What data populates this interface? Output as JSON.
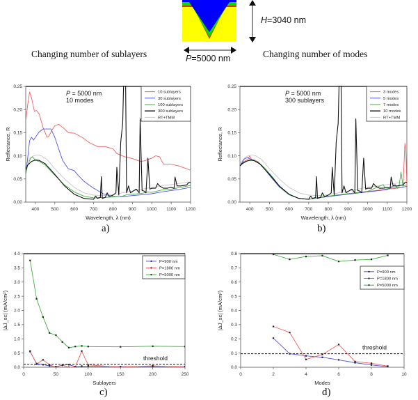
{
  "figure": {
    "left_column_title": "Changing number of sublayers",
    "right_column_title": "Changing number of modes",
    "diagram": {
      "height_label_var": "H",
      "height_label_value": "=3040 nm",
      "period_label_var": "P",
      "period_label_value": "=5000 nm",
      "colors": {
        "top_layer": "#0000ff",
        "middle_layer": "#00e000",
        "interface": "#d04000",
        "substrate": "#ffff00"
      }
    },
    "panel_labels": [
      "a)",
      "b)",
      "c)",
      "d)"
    ]
  },
  "chart_data": [
    {
      "id": "a",
      "type": "line",
      "xlabel": "Wavelength, λ (nm)",
      "ylabel": "Reflectance, R",
      "xlim": [
        350,
        1200
      ],
      "ylim": [
        0,
        0.25
      ],
      "xticks": [
        400,
        500,
        600,
        700,
        800,
        900,
        1000,
        1100,
        1200
      ],
      "xtick_labels": [
        "400",
        "500",
        "600",
        "700",
        "800",
        "900",
        "1000",
        "1100",
        "1200"
      ],
      "yticks": [
        0,
        0.05,
        0.1,
        0.15,
        0.2,
        0.25
      ],
      "ytick_labels": [
        "0.00",
        "0.05",
        "0.10",
        "0.15",
        "0.20",
        "0.25"
      ],
      "annotation": [
        "P = 5000 nm",
        "10 modes"
      ],
      "legend_position": "top-right",
      "series": [
        {
          "name": "10 sublayers",
          "color": "#f06060",
          "x": [
            350,
            360,
            370,
            380,
            395,
            405,
            420,
            440,
            460,
            470,
            485,
            500,
            520,
            545,
            570,
            600,
            640,
            680,
            720,
            760,
            800,
            820,
            860,
            900,
            940,
            960,
            980,
            1000,
            1020,
            1040,
            1060,
            1100,
            1140,
            1200
          ],
          "y": [
            0.175,
            0.21,
            0.238,
            0.225,
            0.196,
            0.198,
            0.19,
            0.16,
            0.14,
            0.143,
            0.155,
            0.165,
            0.168,
            0.16,
            0.15,
            0.149,
            0.14,
            0.128,
            0.12,
            0.12,
            0.115,
            0.105,
            0.098,
            0.094,
            0.088,
            0.089,
            0.092,
            0.095,
            0.1,
            0.098,
            0.082,
            0.082,
            0.078,
            0.069
          ]
        },
        {
          "name": "30 sublayers",
          "color": "#5050ee",
          "x": [
            350,
            360,
            370,
            380,
            390,
            400,
            420,
            440,
            460,
            480,
            500,
            520,
            540,
            570,
            600,
            620,
            650,
            700,
            750,
            800,
            850,
            900,
            950,
            1000,
            1050,
            1100,
            1150,
            1200
          ],
          "y": [
            0.06,
            0.095,
            0.133,
            0.14,
            0.134,
            0.14,
            0.152,
            0.158,
            0.158,
            0.158,
            0.14,
            0.115,
            0.09,
            0.072,
            0.068,
            0.058,
            0.045,
            0.03,
            0.018,
            0.012,
            0.012,
            0.014,
            0.016,
            0.018,
            0.022,
            0.025,
            0.028,
            0.032
          ]
        },
        {
          "name": "100 sublayers",
          "color": "#40b040",
          "x": [
            350,
            360,
            375,
            385,
            400,
            420,
            450,
            500,
            550,
            600,
            650,
            700,
            750,
            800,
            850,
            870,
            900,
            950,
            980,
            1000,
            1050,
            1100,
            1150,
            1200
          ],
          "y": [
            0.06,
            0.08,
            0.095,
            0.098,
            0.09,
            0.088,
            0.08,
            0.058,
            0.037,
            0.022,
            0.013,
            0.009,
            0.01,
            0.011,
            0.013,
            0.016,
            0.017,
            0.019,
            0.022,
            0.021,
            0.026,
            0.028,
            0.032,
            0.036
          ]
        },
        {
          "name": "300 sublayers",
          "color": "#111111",
          "x": [
            350,
            360,
            380,
            400,
            420,
            450,
            500,
            550,
            600,
            650,
            700,
            710,
            720,
            735,
            740,
            745,
            760,
            770,
            780,
            800,
            815,
            820,
            830,
            840,
            850,
            855,
            860,
            865,
            870,
            880,
            890,
            920,
            935,
            940,
            950,
            960,
            970,
            980,
            990,
            1000,
            1020,
            1030,
            1040,
            1060,
            1080,
            1100,
            1115,
            1120,
            1130,
            1150,
            1180,
            1190,
            1200
          ],
          "y": [
            0.07,
            0.08,
            0.088,
            0.091,
            0.09,
            0.083,
            0.06,
            0.035,
            0.017,
            0.008,
            0.006,
            0.013,
            0.008,
            0.01,
            0.055,
            0.008,
            0.01,
            0.02,
            0.012,
            0.015,
            0.02,
            0.075,
            0.015,
            0.13,
            0.17,
            0.26,
            0.26,
            0.26,
            0.02,
            0.035,
            0.02,
            0.028,
            0.02,
            0.18,
            0.025,
            0.024,
            0.02,
            0.095,
            0.028,
            0.03,
            0.03,
            0.04,
            0.035,
            0.03,
            0.03,
            0.032,
            0.03,
            0.054,
            0.035,
            0.035,
            0.037,
            0.042,
            0.043
          ]
        },
        {
          "name": "RT+TMM",
          "color": "#c8c8c8",
          "x": [
            350,
            370,
            390,
            410,
            430,
            460,
            500,
            550,
            600,
            650,
            700,
            750,
            800,
            900,
            1000,
            1100,
            1200
          ],
          "y": [
            0.082,
            0.094,
            0.1,
            0.102,
            0.1,
            0.092,
            0.072,
            0.05,
            0.032,
            0.02,
            0.015,
            0.014,
            0.016,
            0.024,
            0.032,
            0.038,
            0.044
          ]
        }
      ]
    },
    {
      "id": "b",
      "type": "line",
      "xlabel": "Wavelength, λ (nm)",
      "ylabel": "Reflectance, R",
      "xlim": [
        350,
        1200
      ],
      "ylim": [
        0,
        0.25
      ],
      "xticks": [
        400,
        500,
        600,
        700,
        800,
        900,
        1000,
        1100,
        1200
      ],
      "xtick_labels": [
        "400",
        "500",
        "600",
        "700",
        "800",
        "900",
        "1000",
        "1100",
        "1200"
      ],
      "yticks": [
        0,
        0.05,
        0.1,
        0.15,
        0.2,
        0.25
      ],
      "ytick_labels": [
        "0.00",
        "0.05",
        "0.10",
        "0.15",
        "0.20",
        "0.25"
      ],
      "annotation": [
        "P = 5000 nm",
        "300 sublayers"
      ],
      "legend_position": "top-right",
      "series": [
        {
          "name": "3 modes",
          "color": "#f06060",
          "x": [
            350,
            370,
            390,
            400,
            410,
            430,
            460,
            500,
            550,
            600,
            650,
            700,
            750,
            800,
            900,
            1000,
            1100,
            1150,
            1180,
            1190,
            1195,
            1200
          ],
          "y": [
            0.078,
            0.088,
            0.092,
            0.1,
            0.092,
            0.09,
            0.08,
            0.058,
            0.033,
            0.016,
            0.008,
            0.006,
            0.01,
            0.013,
            0.018,
            0.023,
            0.028,
            0.03,
            0.032,
            0.127,
            0.11,
            0.035
          ]
        },
        {
          "name": "5 modes",
          "color": "#5050ee",
          "x": [
            350,
            370,
            380,
            390,
            400,
            420,
            460,
            500,
            550,
            600,
            650,
            700,
            750,
            800,
            900,
            1000,
            1100,
            1140,
            1150,
            1200
          ],
          "y": [
            0.078,
            0.092,
            0.095,
            0.096,
            0.094,
            0.09,
            0.08,
            0.058,
            0.033,
            0.016,
            0.008,
            0.006,
            0.009,
            0.012,
            0.017,
            0.022,
            0.027,
            0.038,
            0.03,
            0.034
          ]
        },
        {
          "name": "7 modes",
          "color": "#40b040",
          "x": [
            350,
            370,
            390,
            410,
            440,
            480,
            520,
            560,
            600,
            650,
            700,
            750,
            800,
            900,
            1000,
            1080,
            1090,
            1100,
            1160,
            1170,
            1180,
            1200
          ],
          "y": [
            0.078,
            0.085,
            0.089,
            0.09,
            0.088,
            0.072,
            0.052,
            0.03,
            0.016,
            0.008,
            0.006,
            0.01,
            0.013,
            0.018,
            0.023,
            0.038,
            0.028,
            0.029,
            0.033,
            0.065,
            0.035,
            0.037
          ]
        },
        {
          "name": "10 modes",
          "color": "#111111",
          "x": [
            350,
            360,
            380,
            400,
            420,
            450,
            500,
            550,
            600,
            650,
            700,
            710,
            720,
            735,
            740,
            745,
            760,
            770,
            780,
            800,
            815,
            820,
            830,
            840,
            850,
            855,
            860,
            865,
            870,
            880,
            890,
            920,
            935,
            940,
            950,
            960,
            970,
            980,
            990,
            1000,
            1020,
            1030,
            1040,
            1060,
            1080,
            1100,
            1115,
            1120,
            1130,
            1150,
            1180,
            1190,
            1200
          ],
          "y": [
            0.078,
            0.083,
            0.088,
            0.091,
            0.09,
            0.083,
            0.06,
            0.035,
            0.017,
            0.008,
            0.006,
            0.013,
            0.008,
            0.01,
            0.055,
            0.008,
            0.01,
            0.02,
            0.012,
            0.015,
            0.02,
            0.075,
            0.015,
            0.13,
            0.17,
            0.26,
            0.26,
            0.26,
            0.02,
            0.035,
            0.02,
            0.028,
            0.02,
            0.18,
            0.025,
            0.024,
            0.02,
            0.095,
            0.028,
            0.03,
            0.03,
            0.04,
            0.035,
            0.03,
            0.03,
            0.032,
            0.03,
            0.054,
            0.035,
            0.035,
            0.037,
            0.042,
            0.043
          ]
        },
        {
          "name": "RT+TMM",
          "color": "#c8c8c8",
          "x": [
            350,
            370,
            390,
            410,
            430,
            460,
            500,
            550,
            600,
            650,
            700,
            750,
            800,
            900,
            1000,
            1100,
            1200
          ],
          "y": [
            0.082,
            0.094,
            0.1,
            0.102,
            0.1,
            0.092,
            0.072,
            0.05,
            0.032,
            0.02,
            0.015,
            0.014,
            0.016,
            0.024,
            0.032,
            0.038,
            0.044
          ]
        }
      ]
    },
    {
      "id": "c",
      "type": "line",
      "xlabel": "Sublayers",
      "ylabel": "|ΔJ_sc| (mA/cm²)",
      "xlim": [
        0,
        250
      ],
      "ylim": [
        0,
        4.0
      ],
      "xticks": [
        0,
        50,
        100,
        150,
        200,
        250
      ],
      "xtick_labels": [
        "0",
        "50",
        "100",
        "150",
        "200",
        "250"
      ],
      "yticks": [
        0,
        0.5,
        1.0,
        1.5,
        2.0,
        2.5,
        3.0,
        3.5,
        4.0
      ],
      "ytick_labels": [
        "0.0",
        "0.5",
        "1.0",
        "1.5",
        "2.0",
        "2.5",
        "3.0",
        "3.5",
        "4.0"
      ],
      "threshold": {
        "value": 0.1,
        "label": "threshold"
      },
      "legend_position": "top-right",
      "series": [
        {
          "name": "P=900 nm",
          "color": "#5050ee",
          "x": [
            10,
            20,
            30,
            40,
            50,
            60,
            70,
            80,
            90,
            100,
            150,
            200,
            250
          ],
          "y": [
            0.55,
            0.13,
            0.09,
            0.05,
            0.02,
            0.07,
            0.09,
            0.02,
            0.04,
            0.04,
            0.02,
            0.03,
            0.02
          ]
        },
        {
          "name": "P=1800 nm",
          "color": "#f06060",
          "x": [
            10,
            20,
            30,
            40,
            50,
            60,
            70,
            80,
            90,
            100,
            150,
            200,
            250
          ],
          "y": [
            0.57,
            0.11,
            0.26,
            0.09,
            0.0,
            0.07,
            0.0,
            0.01,
            0.57,
            0.08,
            0.0,
            0.05,
            0.0
          ]
        },
        {
          "name": "P=5000 nm",
          "color": "#40b040",
          "x": [
            10,
            20,
            30,
            40,
            50,
            60,
            70,
            80,
            90,
            100,
            150,
            200,
            250
          ],
          "y": [
            3.76,
            2.41,
            1.77,
            1.21,
            1.13,
            0.89,
            0.69,
            0.73,
            0.75,
            0.73,
            0.72,
            0.74,
            0.73
          ]
        }
      ]
    },
    {
      "id": "d",
      "type": "line",
      "xlabel": "Modes",
      "ylabel": "|ΔJ_sc| (mA/cm²)",
      "xlim": [
        0,
        10
      ],
      "ylim": [
        0,
        0.8
      ],
      "xticks": [
        0,
        2,
        4,
        6,
        8,
        10
      ],
      "xtick_labels": [
        "0",
        "2",
        "4",
        "6",
        "8",
        "10"
      ],
      "yticks": [
        0,
        0.1,
        0.2,
        0.3,
        0.4,
        0.5,
        0.6,
        0.7,
        0.8
      ],
      "ytick_labels": [
        "0.0",
        "0.1",
        "0.2",
        "0.3",
        "0.4",
        "0.5",
        "0.6",
        "0.7",
        "0.8"
      ],
      "threshold": {
        "value": 0.095,
        "label": "threshold"
      },
      "legend_position": "top-right",
      "series": [
        {
          "name": "P=900 nm",
          "color": "#5050ee",
          "x": [
            2,
            3,
            4,
            5,
            6,
            7,
            8,
            9
          ],
          "y": [
            0.205,
            0.095,
            0.08,
            0.07,
            0.052,
            0.032,
            0.016,
            0.004
          ]
        },
        {
          "name": "P=1800 nm",
          "color": "#f06060",
          "x": [
            2,
            3,
            4,
            5,
            6,
            7,
            8,
            9
          ],
          "y": [
            0.287,
            0.245,
            0.055,
            0.09,
            0.16,
            0.04,
            0.028,
            0.008
          ]
        },
        {
          "name": "P=5000 nm",
          "color": "#40b040",
          "x": [
            2,
            3,
            4,
            5,
            6,
            7,
            8,
            9
          ],
          "y": [
            0.795,
            0.76,
            0.78,
            0.786,
            0.745,
            0.755,
            0.76,
            0.788
          ]
        }
      ]
    }
  ]
}
